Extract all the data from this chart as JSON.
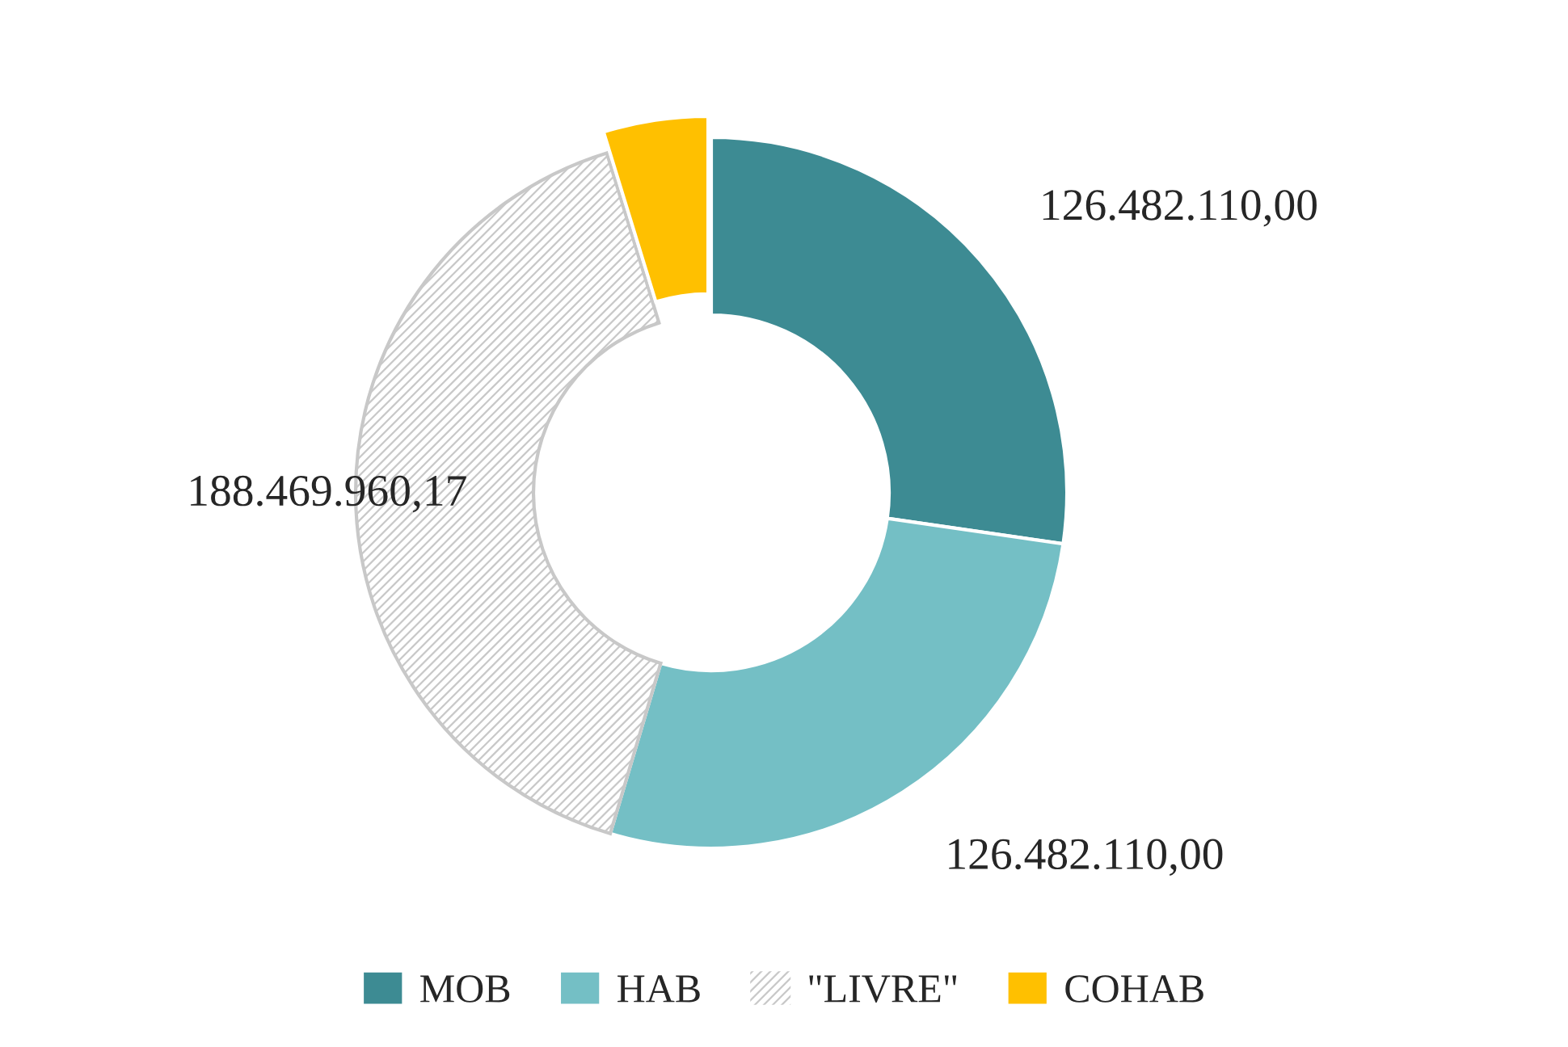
{
  "chart_data": {
    "type": "donut",
    "categories": [
      "MOB",
      "HAB",
      "\"LIVRE\"",
      "COHAB"
    ],
    "values": [
      126482110.0,
      126482110.0,
      188469960.17,
      22000000
    ],
    "value_labels": [
      "126.482.110,00",
      "126.482.110,00",
      "188.469.960,17",
      null
    ],
    "colors": [
      "#3d8b93",
      "#74bfc5",
      "#c8c8c8",
      "#ffc000"
    ],
    "legend": "bottom"
  }
}
